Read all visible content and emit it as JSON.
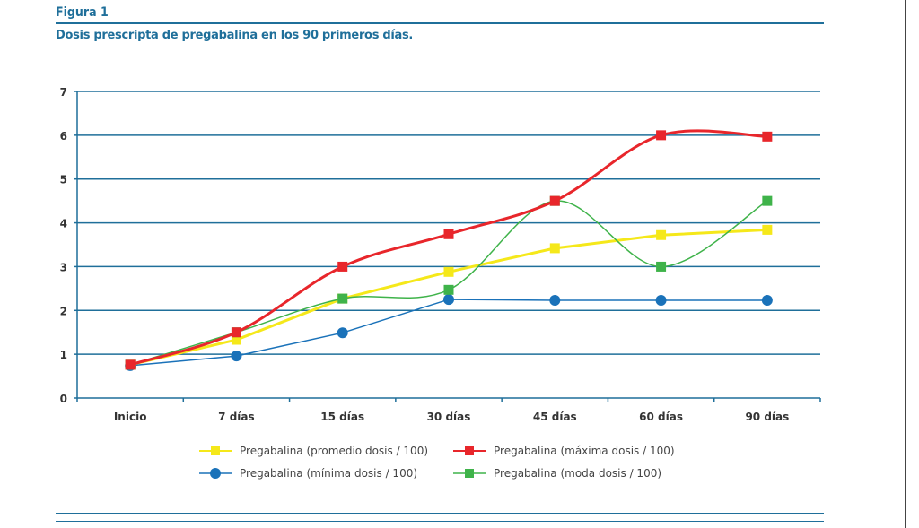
{
  "figure_label": "Figura 1",
  "chart_data": {
    "type": "line",
    "title": "Dosis prescripta de pregabalina en los 90 primeros días.",
    "xlabel": "",
    "ylabel": "",
    "categories": [
      "Inicio",
      "7 días",
      "15 días",
      "30 días",
      "45 días",
      "60 días",
      "90 días"
    ],
    "ylim": [
      0,
      7
    ],
    "yticks": [
      0,
      1,
      2,
      3,
      4,
      5,
      6,
      7
    ],
    "grid": true,
    "legend_position": "bottom",
    "series": [
      {
        "name": "Pregabalina (promedio dosis / 100)",
        "color": "#f5e81a",
        "marker": "square",
        "smooth": false,
        "width": 3,
        "values": [
          0.76,
          1.33,
          2.27,
          2.88,
          3.42,
          3.72,
          3.84
        ]
      },
      {
        "name": "Pregabalina (máxima dosis / 100)",
        "color": "#e8262b",
        "marker": "square",
        "smooth": true,
        "width": 3,
        "values": [
          0.76,
          1.5,
          3.0,
          3.74,
          4.5,
          6.0,
          5.97
        ]
      },
      {
        "name": "Pregabalina (mínima dosis / 100)",
        "color": "#1a72b9",
        "marker": "circle",
        "smooth": false,
        "width": 1.5,
        "values": [
          0.74,
          0.96,
          1.49,
          2.25,
          2.23,
          2.23,
          2.23
        ]
      },
      {
        "name": "Pregabalina (moda dosis / 100)",
        "color": "#3fb34a",
        "marker": "square",
        "smooth": true,
        "width": 1.5,
        "values": [
          0.76,
          1.5,
          2.27,
          2.47,
          4.5,
          3.0,
          4.5
        ]
      }
    ]
  }
}
